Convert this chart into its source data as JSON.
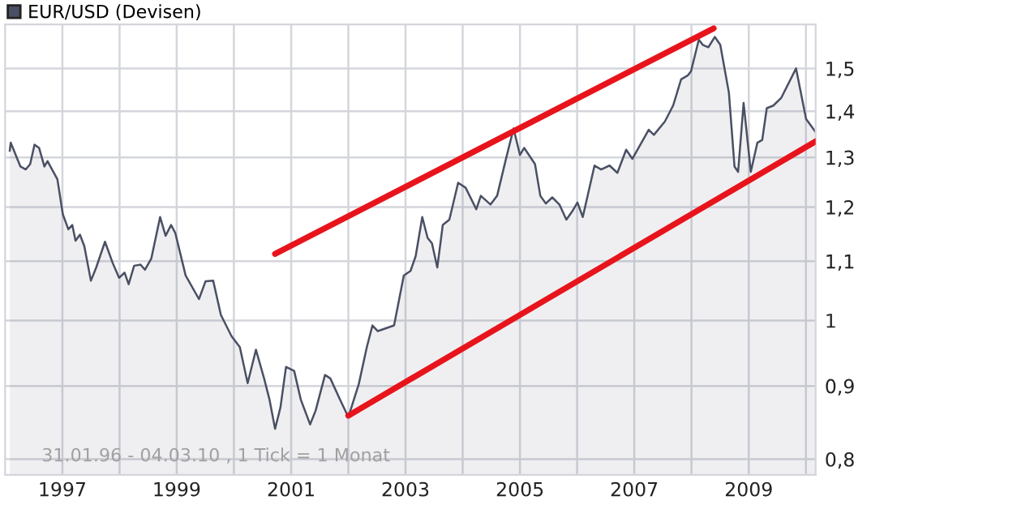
{
  "chart_data": {
    "type": "area",
    "series": [
      {
        "name": "EUR/USD (Devisen)",
        "color": "#4a5064",
        "x": [
          "1996-01-31",
          "1996-02-06",
          "1996-04-08",
          "1996-05-12",
          "1996-06-09",
          "1996-07-07",
          "1996-08-05",
          "1996-09-08",
          "1996-09-28",
          "1996-11-30",
          "1997-01-04",
          "1997-02-08",
          "1997-03-05",
          "1997-03-26",
          "1997-04-23",
          "1997-05-21",
          "1997-07-02",
          "1997-08-05",
          "1997-09-30",
          "1997-11-18",
          "1997-12-29",
          "1998-02-02",
          "1998-02-28",
          "1998-04-04",
          "1998-05-15",
          "1998-06-12",
          "1998-07-23",
          "1998-09-17",
          "1998-10-22",
          "1998-11-26",
          "1998-12-23",
          "1999-02-27",
          "1999-05-23",
          "1999-07-04",
          "1999-08-22",
          "1999-10-10",
          "1999-12-17",
          "2000-02-08",
          "2000-03-29",
          "2000-05-21",
          "2000-07-12",
          "2000-08-16",
          "2000-09-20",
          "2000-10-24",
          "2000-11-29",
          "2001-01-20",
          "2001-03-04",
          "2001-05-02",
          "2001-06-06",
          "2001-08-05",
          "2001-09-08",
          "2001-11-10",
          "2002-01-01",
          "2002-03-09",
          "2002-04-29",
          "2002-06-04",
          "2002-07-08",
          "2002-10-20",
          "2002-12-21",
          "2003-02-02",
          "2003-03-07",
          "2003-04-18",
          "2003-05-22",
          "2003-06-19",
          "2003-07-23",
          "2003-08-27",
          "2003-10-08",
          "2003-12-03",
          "2004-01-20",
          "2004-03-28",
          "2004-04-26",
          "2004-06-27",
          "2004-08-08",
          "2004-09-30",
          "2004-11-21",
          "2005-01-01",
          "2005-01-28",
          "2005-04-07",
          "2005-05-11",
          "2005-06-15",
          "2005-07-26",
          "2005-09-10",
          "2005-10-24",
          "2005-11-29",
          "2006-01-03",
          "2006-02-06",
          "2006-04-22",
          "2006-06-03",
          "2006-07-27",
          "2006-09-15",
          "2006-11-10",
          "2006-12-20",
          "2007-04-03",
          "2007-05-06",
          "2007-07-15",
          "2007-09-06",
          "2007-10-27",
          "2007-12-08",
          "2007-12-29",
          "2008-02-17",
          "2008-03-13",
          "2008-04-18",
          "2008-05-29",
          "2008-07-03",
          "2008-08-27",
          "2008-10-02",
          "2008-10-25",
          "2008-11-29",
          "2009-01-14",
          "2009-02-25",
          "2009-03-28",
          "2009-04-26",
          "2009-06-07",
          "2009-07-28",
          "2009-10-30",
          "2010-01-02",
          "2010-03-04"
        ],
        "values": [
          1.314,
          1.331,
          1.281,
          1.275,
          1.286,
          1.327,
          1.32,
          1.281,
          1.292,
          1.255,
          1.186,
          1.158,
          1.166,
          1.137,
          1.148,
          1.127,
          1.066,
          1.089,
          1.135,
          1.097,
          1.071,
          1.08,
          1.06,
          1.092,
          1.094,
          1.085,
          1.105,
          1.181,
          1.146,
          1.166,
          1.151,
          1.075,
          1.035,
          1.065,
          1.066,
          1.009,
          0.975,
          0.958,
          0.904,
          0.954,
          0.911,
          0.88,
          0.84,
          0.869,
          0.928,
          0.922,
          0.88,
          0.846,
          0.865,
          0.916,
          0.911,
          0.88,
          0.856,
          0.903,
          0.958,
          0.992,
          0.983,
          0.992,
          1.075,
          1.083,
          1.109,
          1.181,
          1.142,
          1.132,
          1.089,
          1.166,
          1.176,
          1.248,
          1.238,
          1.196,
          1.222,
          1.205,
          1.222,
          1.292,
          1.362,
          1.305,
          1.32,
          1.286,
          1.222,
          1.207,
          1.219,
          1.205,
          1.176,
          1.191,
          1.209,
          1.181,
          1.283,
          1.275,
          1.283,
          1.268,
          1.316,
          1.297,
          1.359,
          1.348,
          1.377,
          1.413,
          1.474,
          1.483,
          1.493,
          1.571,
          1.558,
          1.552,
          1.578,
          1.558,
          1.443,
          1.281,
          1.27,
          1.419,
          1.27,
          1.331,
          1.337,
          1.407,
          1.413,
          1.431,
          1.5,
          1.383,
          1.354
        ]
      },
      {
        "type": "line",
        "color": "#e8141c",
        "x": [
          "2000-09-20",
          "2008-05-22"
        ],
        "values": [
          1.113,
          1.6
        ]
      },
      {
        "type": "line",
        "color": "#e8141c",
        "x": [
          "2002-01-01",
          "2010-03-04"
        ],
        "values": [
          0.858,
          1.334
        ]
      }
    ],
    "xlim": [
      "1996-01-01",
      "2010-03-04"
    ],
    "xticks": [
      {
        "value": "1997",
        "label": "1997"
      },
      {
        "value": "1998",
        "label": null
      },
      {
        "value": "1999",
        "label": "1999"
      },
      {
        "value": "2000",
        "label": null
      },
      {
        "value": "2001",
        "label": "2001"
      },
      {
        "value": "2002",
        "label": null
      },
      {
        "value": "2003",
        "label": "2003"
      },
      {
        "value": "2004",
        "label": null
      },
      {
        "value": "2005",
        "label": "2005"
      },
      {
        "value": "2006",
        "label": null
      },
      {
        "value": "2007",
        "label": "2007"
      },
      {
        "value": "2008",
        "label": null
      },
      {
        "value": "2009",
        "label": "2009"
      },
      {
        "value": "2010",
        "label": null
      }
    ],
    "ylim": [
      0.78,
      1.61
    ],
    "yticks": [
      {
        "value": 0.8,
        "label": "0,8"
      },
      {
        "value": 0.9,
        "label": "0,9"
      },
      1,
      {
        "value": 1.1,
        "label": "1,1"
      },
      {
        "value": 1.2,
        "label": "1,2"
      },
      {
        "value": 1.3,
        "label": "1,3"
      },
      {
        "value": 1.4,
        "label": "1,4"
      },
      {
        "value": 1.5,
        "label": "1,5"
      }
    ],
    "log": true,
    "grid": true,
    "legend": "top left",
    "annotations": [
      "31.01.96 - 04.03.10 , 1 Tick = 1 Monat"
    ]
  }
}
